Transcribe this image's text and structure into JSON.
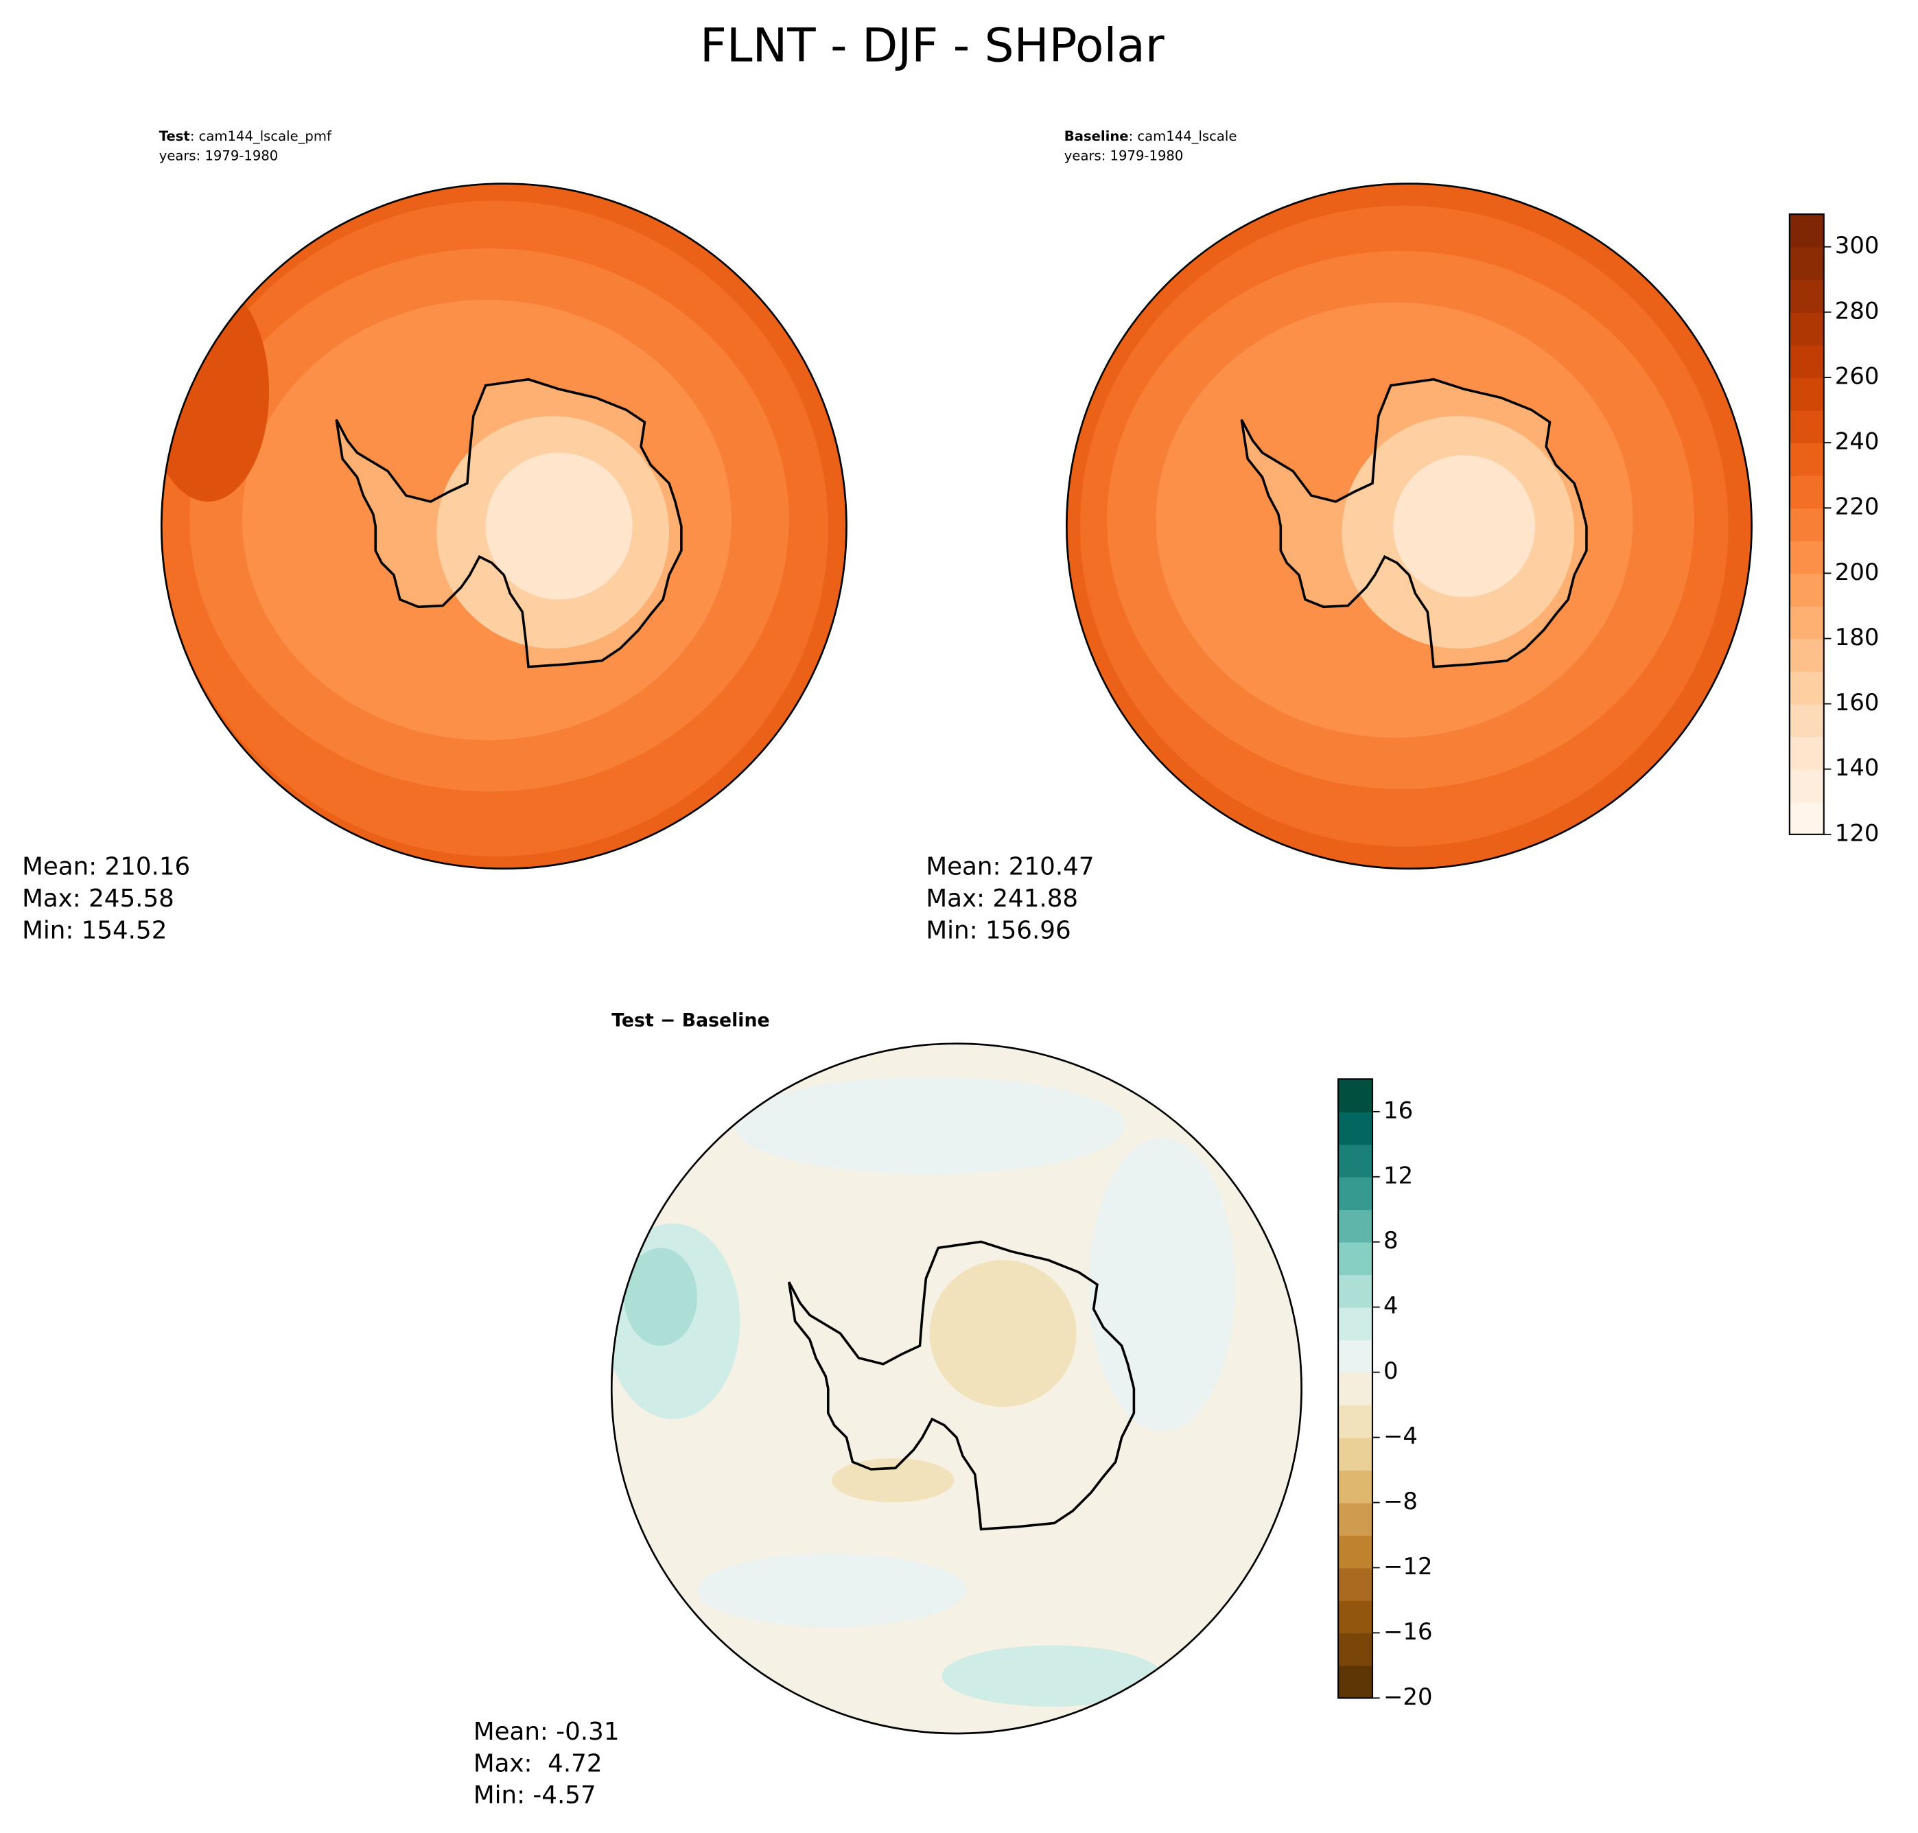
{
  "title": "FLNT - DJF - SHPolar",
  "panels": [
    {
      "label_bold": "Test",
      "label_rest": ": cam144_lscale_pmf",
      "years": "years: 1979-1980",
      "stats": [
        "Mean: 210.16",
        "Max: 245.58",
        "Min: 154.52"
      ]
    },
    {
      "label_bold": "Baseline",
      "label_rest": ": cam144_lscale",
      "years": "years: 1979-1980",
      "stats": [
        "Mean: 210.47",
        "Max: 241.88",
        "Min: 156.96"
      ]
    },
    {
      "label_bold": "Test − Baseline",
      "stats": [
        "Mean: -0.31",
        "Max:  4.72",
        "Min: -4.57"
      ]
    }
  ],
  "colorbars": [
    {
      "levels": [
        120,
        130,
        140,
        150,
        160,
        170,
        180,
        190,
        200,
        210,
        220,
        230,
        240,
        250,
        260,
        270,
        280,
        290,
        300,
        310
      ],
      "colors": [
        "#fff5eb",
        "#feeddc",
        "#fee5cb",
        "#fddbb8",
        "#fdcfa1",
        "#fdc08a",
        "#fdb072",
        "#fda05b",
        "#fc9048",
        "#f87f36",
        "#f36f25",
        "#ea6117",
        "#de520d",
        "#d14705",
        "#c13d03",
        "#ae3703",
        "#9d3103",
        "#8c2c04",
        "#7f2704"
      ],
      "ticks": [
        120,
        140,
        160,
        180,
        200,
        220,
        240,
        260,
        280,
        300
      ]
    },
    {
      "levels": [
        -20,
        -18,
        -16,
        -14,
        -12,
        -10,
        -8,
        -6,
        -4,
        -2,
        0,
        2,
        4,
        6,
        8,
        10,
        12,
        14,
        16,
        18
      ],
      "colors": [
        "#5e3505",
        "#7a4509",
        "#93560f",
        "#aa6a1f",
        "#bf822f",
        "#cf9c4f",
        "#dfb76f",
        "#eacf96",
        "#f2e2bb",
        "#f5eedc",
        "#eaf3f1",
        "#cfece7",
        "#aedfd7",
        "#88cfc3",
        "#5fb5aa",
        "#379a90",
        "#1a8078",
        "#036760",
        "#01503f"
      ],
      "ticks": [
        {
          "value": -20,
          "label": "−20"
        },
        {
          "value": -16,
          "label": "−16"
        },
        {
          "value": -12,
          "label": "−12"
        },
        {
          "value": -8,
          "label": "−8"
        },
        {
          "value": -4,
          "label": "−4"
        },
        0,
        4,
        8,
        12,
        16
      ]
    }
  ]
}
